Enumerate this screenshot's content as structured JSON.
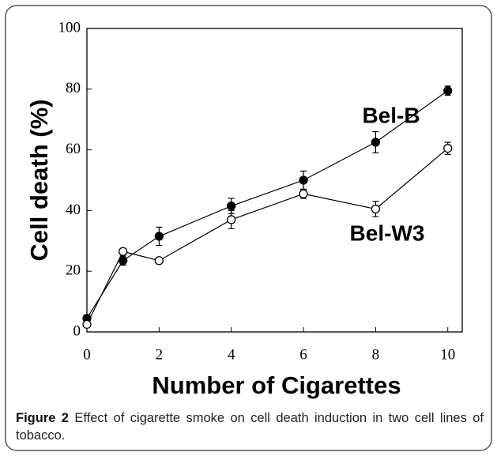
{
  "chart_data": {
    "type": "line",
    "xlabel": "Number of Cigarettes",
    "ylabel": "Cell death (%)",
    "x": [
      0,
      1,
      2,
      4,
      6,
      8,
      10
    ],
    "series": [
      {
        "name": "Bel-B",
        "color": "#000000",
        "marker_fill": "#000000",
        "values": [
          4.5,
          23.5,
          31.5,
          41.5,
          50,
          62.5,
          79.5
        ],
        "errors": [
          1,
          1.5,
          3,
          2.5,
          3,
          3.5,
          1.5
        ]
      },
      {
        "name": "Bel-W3",
        "color": "#000000",
        "marker_fill": "#ffffff",
        "values": [
          2.5,
          26.5,
          23.5,
          37,
          45.5,
          40.5,
          60.5
        ],
        "errors": [
          1,
          1,
          1,
          3,
          1.5,
          2.5,
          2
        ]
      }
    ],
    "xlim": [
      0,
      10.4
    ],
    "xticks": [
      0,
      2,
      4,
      6,
      8,
      10
    ],
    "ylim": [
      0,
      100
    ],
    "yticks": [
      0,
      20,
      40,
      60,
      80,
      100
    ],
    "caption_label": "Figure 2",
    "caption": "Effect of cigarette smoke on cell death induction in two cell lines of tobacco."
  }
}
